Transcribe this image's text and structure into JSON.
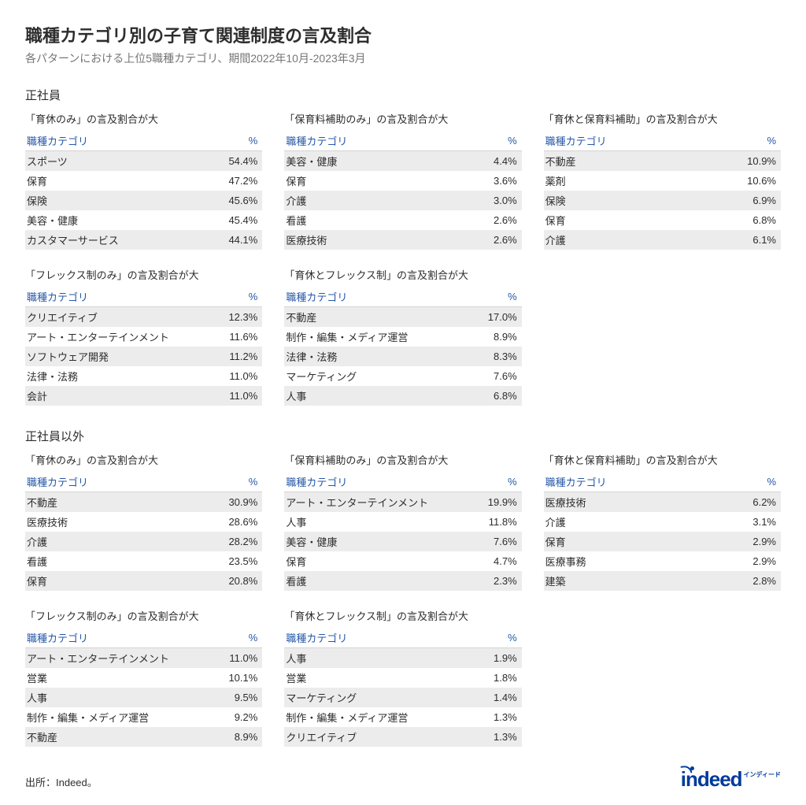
{
  "colors": {
    "background": "#ffffff",
    "text": "#2d2d2d",
    "subtext": "#767676",
    "header_link": "#2557a7",
    "row_stripe": "#ececec",
    "header_border": "#d4d4d4",
    "logo": "#003a9b"
  },
  "typography": {
    "title_fontsize": 22,
    "subtitle_fontsize": 14,
    "section_fontsize": 15,
    "body_fontsize": 13
  },
  "title": "職種カテゴリ別の子育て関連制度の言及割合",
  "subtitle": "各パターンにおける上位5職種カテゴリ、期間2022年10月-2023年3月",
  "col_category": "職種カテゴリ",
  "col_pct": "%",
  "sections": [
    {
      "heading": "正社員",
      "panels": [
        {
          "title": "「育休のみ」の言及割合が大",
          "rows": [
            [
              "スポーツ",
              "54.4%"
            ],
            [
              "保育",
              "47.2%"
            ],
            [
              "保険",
              "45.6%"
            ],
            [
              "美容・健康",
              "45.4%"
            ],
            [
              "カスタマーサービス",
              "44.1%"
            ]
          ]
        },
        {
          "title": "「保育料補助のみ」の言及割合が大",
          "rows": [
            [
              "美容・健康",
              "4.4%"
            ],
            [
              "保育",
              "3.6%"
            ],
            [
              "介護",
              "3.0%"
            ],
            [
              "看護",
              "2.6%"
            ],
            [
              "医療技術",
              "2.6%"
            ]
          ]
        },
        {
          "title": "「育休と保育料補助」の言及割合が大",
          "rows": [
            [
              "不動産",
              "10.9%"
            ],
            [
              "薬剤",
              "10.6%"
            ],
            [
              "保険",
              "6.9%"
            ],
            [
              "保育",
              "6.8%"
            ],
            [
              "介護",
              "6.1%"
            ]
          ]
        },
        {
          "title": "「フレックス制のみ」の言及割合が大",
          "rows": [
            [
              "クリエイティブ",
              "12.3%"
            ],
            [
              "アート・エンターテインメント",
              "11.6%"
            ],
            [
              "ソフトウェア開発",
              "11.2%"
            ],
            [
              "法律・法務",
              "11.0%"
            ],
            [
              "会計",
              "11.0%"
            ]
          ]
        },
        {
          "title": "「育休とフレックス制」の言及割合が大",
          "rows": [
            [
              "不動産",
              "17.0%"
            ],
            [
              "制作・編集・メディア運営",
              "8.9%"
            ],
            [
              "法律・法務",
              "8.3%"
            ],
            [
              "マーケティング",
              "7.6%"
            ],
            [
              "人事",
              "6.8%"
            ]
          ]
        }
      ]
    },
    {
      "heading": "正社員以外",
      "panels": [
        {
          "title": "「育休のみ」の言及割合が大",
          "rows": [
            [
              "不動産",
              "30.9%"
            ],
            [
              "医療技術",
              "28.6%"
            ],
            [
              "介護",
              "28.2%"
            ],
            [
              "看護",
              "23.5%"
            ],
            [
              "保育",
              "20.8%"
            ]
          ]
        },
        {
          "title": "「保育料補助のみ」の言及割合が大",
          "rows": [
            [
              "アート・エンターテインメント",
              "19.9%"
            ],
            [
              "人事",
              "11.8%"
            ],
            [
              "美容・健康",
              "7.6%"
            ],
            [
              "保育",
              "4.7%"
            ],
            [
              "看護",
              "2.3%"
            ]
          ]
        },
        {
          "title": "「育休と保育料補助」の言及割合が大",
          "rows": [
            [
              "医療技術",
              "6.2%"
            ],
            [
              "介護",
              "3.1%"
            ],
            [
              "保育",
              "2.9%"
            ],
            [
              "医療事務",
              "2.9%"
            ],
            [
              "建築",
              "2.8%"
            ]
          ]
        },
        {
          "title": "「フレックス制のみ」の言及割合が大",
          "rows": [
            [
              "アート・エンターテインメント",
              "11.0%"
            ],
            [
              "営業",
              "10.1%"
            ],
            [
              "人事",
              "9.5%"
            ],
            [
              "制作・編集・メディア運営",
              "9.2%"
            ],
            [
              "不動産",
              "8.9%"
            ]
          ]
        },
        {
          "title": "「育休とフレックス制」の言及割合が大",
          "rows": [
            [
              "人事",
              "1.9%"
            ],
            [
              "営業",
              "1.8%"
            ],
            [
              "マーケティング",
              "1.4%"
            ],
            [
              "制作・編集・メディア運営",
              "1.3%"
            ],
            [
              "クリエイティブ",
              "1.3%"
            ]
          ]
        }
      ]
    }
  ],
  "source": "出所：Indeed。",
  "logo_main": "indeed",
  "logo_kana": "インディード"
}
